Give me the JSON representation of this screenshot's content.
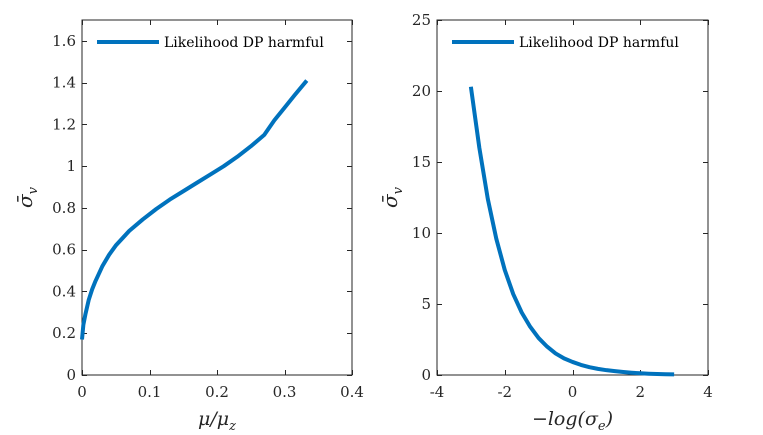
{
  "chart_data": [
    {
      "type": "line",
      "title": "",
      "xlabel": {
        "base": "μ/μ",
        "sub": "z"
      },
      "ylabel": {
        "base": "σ̄",
        "sub": "v"
      },
      "xlim": [
        0,
        0.4
      ],
      "ylim": [
        0,
        1.7
      ],
      "xticks": [
        0,
        0.1,
        0.2,
        0.3,
        0.4
      ],
      "xtick_labels": [
        "0",
        "0.1",
        "0.2",
        "0.3",
        "0.4"
      ],
      "yticks": [
        0,
        0.2,
        0.4,
        0.6,
        0.8,
        1,
        1.2,
        1.4,
        1.6
      ],
      "ytick_labels": [
        "0",
        "0.2",
        "0.4",
        "0.6",
        "0.8",
        "1",
        "1.2",
        "1.4",
        "1.6"
      ],
      "legend_position": "top-left",
      "series": [
        {
          "name": "Likelihood DP harmful",
          "color": "#0072BD",
          "x": [
            0,
            0.002,
            0.005,
            0.01,
            0.015,
            0.02,
            0.03,
            0.04,
            0.05,
            0.07,
            0.09,
            0.11,
            0.13,
            0.15,
            0.17,
            0.19,
            0.21,
            0.23,
            0.25,
            0.27,
            0.285,
            0.3,
            0.315,
            0.333
          ],
          "y": [
            0.17,
            0.24,
            0.29,
            0.36,
            0.41,
            0.45,
            0.52,
            0.575,
            0.62,
            0.69,
            0.745,
            0.795,
            0.84,
            0.88,
            0.92,
            0.96,
            1.0,
            1.045,
            1.095,
            1.15,
            1.22,
            1.28,
            1.34,
            1.41
          ]
        }
      ]
    },
    {
      "type": "line",
      "title": "",
      "xlabel": {
        "base": "−log(σ",
        "sub": "e",
        "tail": ")"
      },
      "ylabel": {
        "base": "σ̄",
        "sub": "v"
      },
      "xlim": [
        -4,
        4
      ],
      "ylim": [
        0,
        25
      ],
      "xticks": [
        -4,
        -2,
        0,
        2,
        4
      ],
      "xtick_labels": [
        "-4",
        "-2",
        "0",
        "2",
        "4"
      ],
      "yticks": [
        0,
        5,
        10,
        15,
        20,
        25
      ],
      "ytick_labels": [
        "0",
        "5",
        "10",
        "15",
        "20",
        "25"
      ],
      "legend_position": "top-left",
      "series": [
        {
          "name": "Likelihood DP harmful",
          "color": "#0072BD",
          "x": [
            -3,
            -2.75,
            -2.5,
            -2.25,
            -2,
            -1.75,
            -1.5,
            -1.25,
            -1,
            -0.75,
            -0.5,
            -0.25,
            0,
            0.25,
            0.5,
            0.75,
            1,
            1.25,
            1.5,
            1.75,
            2,
            2.25,
            2.5,
            2.75,
            3
          ],
          "y": [
            20.3,
            16.0,
            12.4,
            9.6,
            7.4,
            5.7,
            4.4,
            3.4,
            2.6,
            2.0,
            1.52,
            1.17,
            0.92,
            0.71,
            0.55,
            0.43,
            0.34,
            0.27,
            0.21,
            0.16,
            0.12,
            0.09,
            0.07,
            0.05,
            0.04
          ]
        }
      ]
    }
  ]
}
